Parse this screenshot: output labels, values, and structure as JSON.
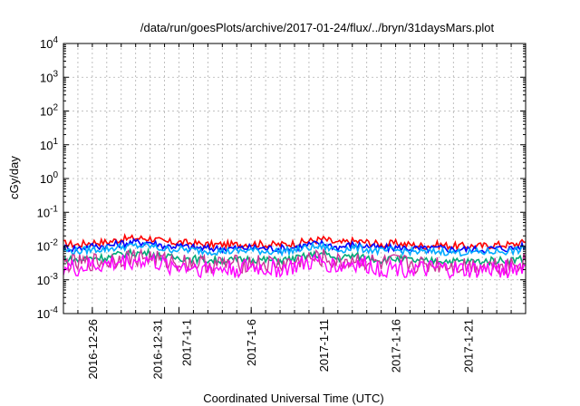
{
  "chart_data": {
    "type": "line",
    "title": "/data/run/goesPlots/archive/2017-01-24/flux/../bryn/31daysMars.plot",
    "xlabel": "Coordinated Universal Time (UTC)",
    "ylabel": "cGy/day",
    "yscale": "log",
    "ylim": [
      0.0001,
      10000
    ],
    "grid": true,
    "xlim": [
      "2016-12-24",
      "2017-01-25"
    ],
    "y_ticks": [
      {
        "base": "10",
        "exp": "4"
      },
      {
        "base": "10",
        "exp": "3"
      },
      {
        "base": "10",
        "exp": "2"
      },
      {
        "base": "10",
        "exp": "1"
      },
      {
        "base": "10",
        "exp": "0"
      },
      {
        "base": "10",
        "exp": "-1"
      },
      {
        "base": "10",
        "exp": "-2"
      },
      {
        "base": "10",
        "exp": "-3"
      },
      {
        "base": "10",
        "exp": "-4"
      }
    ],
    "x_ticks": [
      {
        "date": "2016-12-26",
        "label": "2016-12-26"
      },
      {
        "date": "2016-12-31",
        "label": "2016-12-31"
      },
      {
        "date": "2017-01-01",
        "label": "2017-1-1"
      },
      {
        "date": "2017-01-06",
        "label": "2017-1-6"
      },
      {
        "date": "2017-01-11",
        "label": "2017-1-11"
      },
      {
        "date": "2017-01-16",
        "label": "2017-1-16"
      },
      {
        "date": "2017-01-21",
        "label": "2017-1-21"
      }
    ],
    "series_colors": [
      "#ff0000",
      "#0000ff",
      "#00aaff",
      "#00aa77",
      "#cc3399",
      "#ff00ff"
    ],
    "series": [
      {
        "color": "#ff0000",
        "x": [
          "2016-12-24",
          "2016-12-25",
          "2016-12-26",
          "2016-12-27",
          "2016-12-28",
          "2016-12-29",
          "2016-12-30",
          "2016-12-31",
          "2017-01-01",
          "2017-01-02",
          "2017-01-03",
          "2017-01-04",
          "2017-01-05",
          "2017-01-06",
          "2017-01-07",
          "2017-01-08",
          "2017-01-09",
          "2017-01-10",
          "2017-01-11",
          "2017-01-12",
          "2017-01-13",
          "2017-01-14",
          "2017-01-15",
          "2017-01-16",
          "2017-01-17",
          "2017-01-18",
          "2017-01-19",
          "2017-01-20",
          "2017-01-21",
          "2017-01-22",
          "2017-01-23",
          "2017-01-24",
          "2017-01-25"
        ],
        "values": [
          0.012,
          0.011,
          0.013,
          0.013,
          0.016,
          0.017,
          0.017,
          0.013,
          0.013,
          0.012,
          0.011,
          0.011,
          0.011,
          0.012,
          0.011,
          0.011,
          0.012,
          0.014,
          0.016,
          0.012,
          0.014,
          0.013,
          0.011,
          0.012,
          0.011,
          0.01,
          0.011,
          0.01,
          0.01,
          0.01,
          0.011,
          0.011,
          0.013
        ]
      },
      {
        "color": "#0000ff",
        "x": [
          "2016-12-24",
          "2016-12-25",
          "2016-12-26",
          "2016-12-27",
          "2016-12-28",
          "2016-12-29",
          "2016-12-30",
          "2016-12-31",
          "2017-01-01",
          "2017-01-02",
          "2017-01-03",
          "2017-01-04",
          "2017-01-05",
          "2017-01-06",
          "2017-01-07",
          "2017-01-08",
          "2017-01-09",
          "2017-01-10",
          "2017-01-11",
          "2017-01-12",
          "2017-01-13",
          "2017-01-14",
          "2017-01-15",
          "2017-01-16",
          "2017-01-17",
          "2017-01-18",
          "2017-01-19",
          "2017-01-20",
          "2017-01-21",
          "2017-01-22",
          "2017-01-23",
          "2017-01-24",
          "2017-01-25"
        ],
        "values": [
          0.009,
          0.0085,
          0.01,
          0.01,
          0.012,
          0.013,
          0.013,
          0.01,
          0.01,
          0.009,
          0.0085,
          0.0085,
          0.0085,
          0.009,
          0.0085,
          0.0085,
          0.009,
          0.011,
          0.012,
          0.009,
          0.011,
          0.01,
          0.0085,
          0.009,
          0.0085,
          0.008,
          0.0085,
          0.008,
          0.008,
          0.008,
          0.0085,
          0.0085,
          0.01
        ]
      },
      {
        "color": "#00aaff",
        "x": [
          "2016-12-24",
          "2016-12-25",
          "2016-12-26",
          "2016-12-27",
          "2016-12-28",
          "2016-12-29",
          "2016-12-30",
          "2016-12-31",
          "2017-01-01",
          "2017-01-02",
          "2017-01-03",
          "2017-01-04",
          "2017-01-05",
          "2017-01-06",
          "2017-01-07",
          "2017-01-08",
          "2017-01-09",
          "2017-01-10",
          "2017-01-11",
          "2017-01-12",
          "2017-01-13",
          "2017-01-14",
          "2017-01-15",
          "2017-01-16",
          "2017-01-17",
          "2017-01-18",
          "2017-01-19",
          "2017-01-20",
          "2017-01-21",
          "2017-01-22",
          "2017-01-23",
          "2017-01-24",
          "2017-01-25"
        ],
        "values": [
          0.0075,
          0.007,
          0.008,
          0.0082,
          0.0095,
          0.01,
          0.01,
          0.008,
          0.008,
          0.0075,
          0.007,
          0.007,
          0.007,
          0.0075,
          0.007,
          0.007,
          0.0075,
          0.009,
          0.0095,
          0.0075,
          0.009,
          0.008,
          0.007,
          0.0075,
          0.007,
          0.0065,
          0.007,
          0.0065,
          0.0065,
          0.0065,
          0.007,
          0.007,
          0.008
        ]
      },
      {
        "color": "#00aa77",
        "x": [
          "2016-12-24",
          "2016-12-25",
          "2016-12-26",
          "2016-12-27",
          "2016-12-28",
          "2016-12-29",
          "2016-12-30",
          "2016-12-31",
          "2017-01-01",
          "2017-01-02",
          "2017-01-03",
          "2017-01-04",
          "2017-01-05",
          "2017-01-06",
          "2017-01-07",
          "2017-01-08",
          "2017-01-09",
          "2017-01-10",
          "2017-01-11",
          "2017-01-12",
          "2017-01-13",
          "2017-01-14",
          "2017-01-15",
          "2017-01-16",
          "2017-01-17",
          "2017-01-18",
          "2017-01-19",
          "2017-01-20",
          "2017-01-21",
          "2017-01-22",
          "2017-01-23",
          "2017-01-24",
          "2017-01-25"
        ],
        "values": [
          0.0042,
          0.0038,
          0.0045,
          0.0046,
          0.0058,
          0.0062,
          0.0062,
          0.0046,
          0.0045,
          0.0042,
          0.0038,
          0.0038,
          0.0038,
          0.0042,
          0.0038,
          0.0038,
          0.0042,
          0.0052,
          0.0058,
          0.0042,
          0.0052,
          0.0046,
          0.0038,
          0.0042,
          0.0038,
          0.0035,
          0.0038,
          0.0035,
          0.0035,
          0.0035,
          0.0038,
          0.0038,
          0.0045
        ]
      },
      {
        "color": "#cc3399",
        "x": [
          "2016-12-24",
          "2016-12-25",
          "2016-12-26",
          "2016-12-27",
          "2016-12-28",
          "2016-12-29",
          "2016-12-30",
          "2016-12-31",
          "2017-01-01",
          "2017-01-02",
          "2017-01-03",
          "2017-01-04",
          "2017-01-05",
          "2017-01-06",
          "2017-01-07",
          "2017-01-08",
          "2017-01-09",
          "2017-01-10",
          "2017-01-11",
          "2017-01-12",
          "2017-01-13",
          "2017-01-14",
          "2017-01-15",
          "2017-01-16",
          "2017-01-17",
          "2017-01-18",
          "2017-01-19",
          "2017-01-20",
          "2017-01-21",
          "2017-01-22",
          "2017-01-23",
          "2017-01-24",
          "2017-01-25"
        ],
        "values": [
          0.0032,
          0.0029,
          0.0034,
          0.0035,
          0.0044,
          0.0047,
          0.0047,
          0.0035,
          0.0034,
          0.0032,
          0.0029,
          0.0029,
          0.0029,
          0.0032,
          0.0029,
          0.0029,
          0.0032,
          0.004,
          0.0044,
          0.0032,
          0.004,
          0.0035,
          0.0029,
          0.0032,
          0.0029,
          0.0027,
          0.0029,
          0.0027,
          0.0027,
          0.0027,
          0.0029,
          0.0029,
          0.0034
        ]
      },
      {
        "color": "#ff00ff",
        "x": [
          "2016-12-24",
          "2016-12-25",
          "2016-12-26",
          "2016-12-27",
          "2016-12-28",
          "2016-12-29",
          "2016-12-30",
          "2016-12-31",
          "2017-01-01",
          "2017-01-02",
          "2017-01-03",
          "2017-01-04",
          "2017-01-05",
          "2017-01-06",
          "2017-01-07",
          "2017-01-08",
          "2017-01-09",
          "2017-01-10",
          "2017-01-11",
          "2017-01-12",
          "2017-01-13",
          "2017-01-14",
          "2017-01-15",
          "2017-01-16",
          "2017-01-17",
          "2017-01-18",
          "2017-01-19",
          "2017-01-20",
          "2017-01-21",
          "2017-01-22",
          "2017-01-23",
          "2017-01-24",
          "2017-01-25"
        ],
        "values": [
          0.0024,
          0.0021,
          0.0026,
          0.0027,
          0.0034,
          0.0037,
          0.0037,
          0.0026,
          0.0026,
          0.0024,
          0.0021,
          0.0021,
          0.0021,
          0.0024,
          0.0021,
          0.0021,
          0.0024,
          0.0031,
          0.0034,
          0.0024,
          0.0031,
          0.0027,
          0.0021,
          0.0024,
          0.0021,
          0.0019,
          0.0021,
          0.0019,
          0.0019,
          0.0019,
          0.0021,
          0.0021,
          0.0026
        ]
      }
    ]
  }
}
